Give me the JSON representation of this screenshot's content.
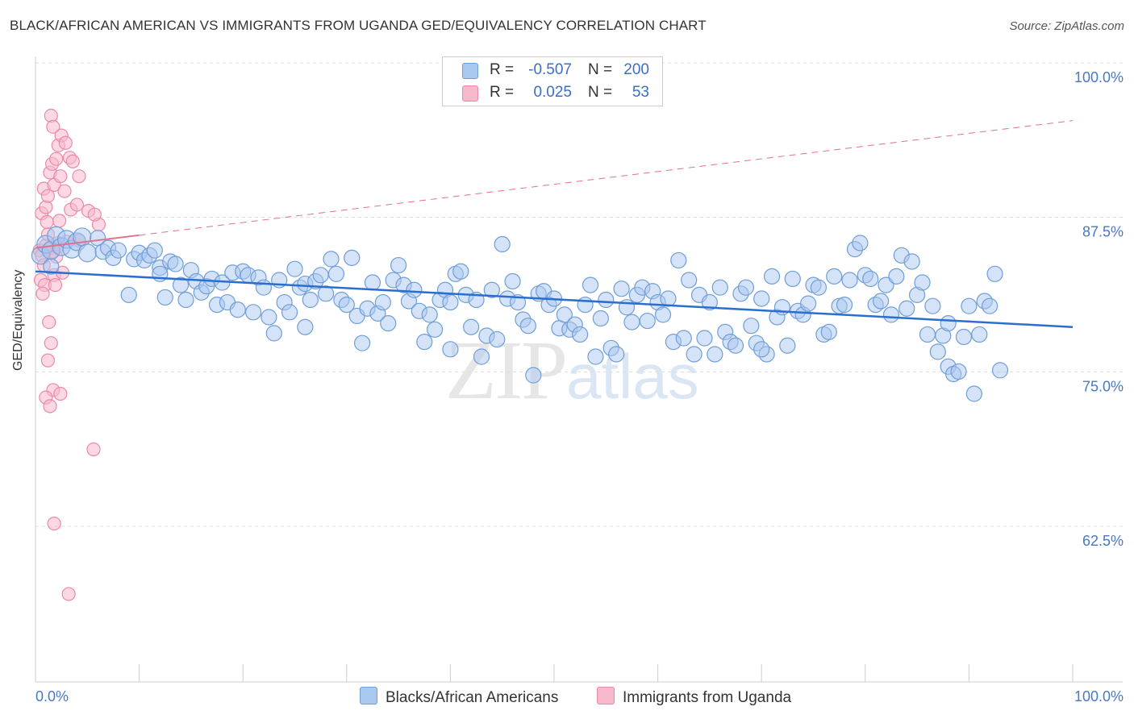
{
  "title": "BLACK/AFRICAN AMERICAN VS IMMIGRANTS FROM UGANDA GED/EQUIVALENCY CORRELATION CHART",
  "source": "Source: ZipAtlas.com",
  "watermark": {
    "zip": "ZIP",
    "atlas": "atlas"
  },
  "legend": {
    "rows": [
      {
        "r_label": "R =",
        "r_value": "-0.507",
        "n_label": "N =",
        "n_value": "200"
      },
      {
        "r_label": "R =",
        "r_value": "0.025",
        "n_label": "N =",
        "n_value": "53"
      }
    ]
  },
  "colors": {
    "blue_fill": "#a9c8f0",
    "blue_stroke": "#6f9ed8",
    "blue_line": "#2a6fcf",
    "pink_fill": "#f7b8cc",
    "pink_stroke": "#ea8aa8",
    "pink_line": "#e4708f",
    "grid": "#dddddd",
    "axis_text": "#4a78c4"
  },
  "chart_data": {
    "type": "scatter",
    "title": "BLACK/AFRICAN AMERICAN VS IMMIGRANTS FROM UGANDA GED/EQUIVALENCY CORRELATION CHART",
    "xlabel": "",
    "ylabel": "GED/Equivalency",
    "xlim": [
      0,
      100
    ],
    "ylim": [
      50,
      102
    ],
    "x_tick_labels": [
      "0.0%",
      "100.0%"
    ],
    "y_ticks": [
      62.5,
      75.0,
      87.5,
      100.0
    ],
    "y_tick_labels": [
      "62.5%",
      "75.0%",
      "87.5%",
      "100.0%"
    ],
    "grid": true,
    "legend_placement": "top-center",
    "series": [
      {
        "name": "Blacks/African Americans",
        "color": "#a9c8f0",
        "trend": {
          "x": [
            0,
            100
          ],
          "y": [
            84.3,
            79.8
          ]
        },
        "points": [
          [
            0.5,
            85.6
          ],
          [
            1.0,
            86.5
          ],
          [
            1.5,
            86.0
          ],
          [
            2.0,
            87.2
          ],
          [
            2.5,
            86.3
          ],
          [
            3.0,
            86.9
          ],
          [
            3.5,
            86.1
          ],
          [
            4.0,
            86.7
          ],
          [
            4.5,
            87.1
          ],
          [
            5.0,
            85.8
          ],
          [
            6.0,
            87.0
          ],
          [
            6.5,
            85.9
          ],
          [
            7.0,
            86.2
          ],
          [
            7.5,
            85.4
          ],
          [
            8.0,
            86.0
          ],
          [
            9.0,
            82.4
          ],
          [
            9.5,
            85.3
          ],
          [
            10.0,
            85.8
          ],
          [
            10.5,
            85.2
          ],
          [
            11.0,
            85.6
          ],
          [
            11.5,
            86.0
          ],
          [
            12.0,
            84.6
          ],
          [
            12.5,
            82.2
          ],
          [
            13.0,
            85.1
          ],
          [
            13.5,
            84.9
          ],
          [
            14.0,
            83.2
          ],
          [
            14.5,
            82.0
          ],
          [
            15.0,
            84.4
          ],
          [
            15.5,
            83.5
          ],
          [
            16.0,
            82.6
          ],
          [
            16.5,
            83.1
          ],
          [
            17.0,
            83.7
          ],
          [
            17.5,
            81.6
          ],
          [
            18.0,
            83.4
          ],
          [
            18.5,
            81.8
          ],
          [
            19.0,
            84.2
          ],
          [
            19.5,
            81.2
          ],
          [
            20.0,
            84.3
          ],
          [
            20.5,
            84.0
          ],
          [
            21.0,
            81.0
          ],
          [
            21.5,
            83.8
          ],
          [
            22.0,
            83.0
          ],
          [
            22.5,
            80.6
          ],
          [
            23.0,
            79.3
          ],
          [
            23.5,
            83.6
          ],
          [
            24.0,
            81.8
          ],
          [
            24.5,
            81.0
          ],
          [
            25.0,
            84.5
          ],
          [
            25.5,
            83.0
          ],
          [
            26.0,
            83.3
          ],
          [
            26.5,
            82.0
          ],
          [
            27.0,
            83.5
          ],
          [
            27.5,
            84.0
          ],
          [
            28.0,
            82.5
          ],
          [
            28.5,
            85.3
          ],
          [
            29.0,
            84.1
          ],
          [
            29.5,
            82.0
          ],
          [
            30.0,
            81.6
          ],
          [
            30.5,
            85.4
          ],
          [
            31.0,
            80.7
          ],
          [
            31.5,
            78.5
          ],
          [
            32.0,
            81.3
          ],
          [
            32.5,
            83.4
          ],
          [
            33.0,
            80.9
          ],
          [
            33.5,
            81.8
          ],
          [
            34.0,
            80.1
          ],
          [
            34.5,
            83.6
          ],
          [
            35.0,
            84.8
          ],
          [
            35.5,
            83.2
          ],
          [
            36.0,
            81.9
          ],
          [
            36.5,
            82.8
          ],
          [
            37.0,
            81.1
          ],
          [
            37.5,
            78.6
          ],
          [
            38.0,
            80.8
          ],
          [
            38.5,
            79.6
          ],
          [
            39.0,
            82.0
          ],
          [
            39.5,
            82.8
          ],
          [
            40.0,
            81.8
          ],
          [
            40.5,
            84.1
          ],
          [
            41.0,
            84.3
          ],
          [
            41.5,
            82.4
          ],
          [
            42.0,
            79.8
          ],
          [
            42.5,
            82.0
          ],
          [
            43.0,
            77.4
          ],
          [
            43.5,
            79.1
          ],
          [
            44.0,
            82.8
          ],
          [
            44.5,
            78.8
          ],
          [
            45.0,
            86.5
          ],
          [
            45.5,
            82.1
          ],
          [
            46.0,
            83.5
          ],
          [
            46.5,
            81.8
          ],
          [
            47.0,
            80.4
          ],
          [
            47.5,
            79.9
          ],
          [
            48.0,
            75.9
          ],
          [
            48.5,
            82.5
          ],
          [
            49.0,
            82.7
          ],
          [
            49.5,
            81.6
          ],
          [
            50.0,
            82.1
          ],
          [
            50.5,
            79.7
          ],
          [
            51.0,
            80.8
          ],
          [
            51.5,
            79.6
          ],
          [
            52.0,
            80.0
          ],
          [
            52.5,
            79.2
          ],
          [
            53.0,
            81.6
          ],
          [
            53.5,
            83.2
          ],
          [
            54.0,
            77.4
          ],
          [
            54.5,
            80.5
          ],
          [
            55.0,
            82.0
          ],
          [
            55.5,
            78.1
          ],
          [
            56.0,
            77.6
          ],
          [
            56.5,
            82.9
          ],
          [
            57.0,
            81.4
          ],
          [
            57.5,
            80.2
          ],
          [
            58.0,
            82.4
          ],
          [
            58.5,
            83.0
          ],
          [
            59.0,
            80.3
          ],
          [
            59.5,
            82.7
          ],
          [
            60.0,
            81.8
          ],
          [
            60.5,
            80.8
          ],
          [
            61.0,
            82.1
          ],
          [
            61.5,
            78.6
          ],
          [
            62.0,
            85.2
          ],
          [
            62.5,
            78.9
          ],
          [
            63.0,
            83.6
          ],
          [
            63.5,
            77.6
          ],
          [
            64.0,
            82.4
          ],
          [
            64.5,
            78.9
          ],
          [
            65.0,
            81.8
          ],
          [
            65.5,
            77.6
          ],
          [
            66.0,
            83.0
          ],
          [
            66.5,
            79.4
          ],
          [
            67.0,
            78.6
          ],
          [
            67.5,
            78.3
          ],
          [
            68.0,
            82.5
          ],
          [
            68.5,
            83.0
          ],
          [
            69.0,
            79.9
          ],
          [
            69.5,
            78.5
          ],
          [
            70.0,
            82.1
          ],
          [
            70.5,
            77.6
          ],
          [
            71.0,
            83.9
          ],
          [
            71.5,
            80.6
          ],
          [
            72.0,
            81.4
          ],
          [
            72.5,
            78.3
          ],
          [
            73.0,
            83.7
          ],
          [
            73.5,
            81.1
          ],
          [
            74.0,
            80.8
          ],
          [
            74.5,
            81.7
          ],
          [
            75.0,
            83.2
          ],
          [
            75.5,
            83.0
          ],
          [
            76.0,
            79.2
          ],
          [
            76.5,
            79.4
          ],
          [
            77.0,
            83.9
          ],
          [
            77.5,
            81.5
          ],
          [
            78.0,
            81.6
          ],
          [
            78.5,
            83.6
          ],
          [
            79.0,
            86.1
          ],
          [
            79.5,
            86.6
          ],
          [
            80.0,
            84.0
          ],
          [
            80.5,
            83.7
          ],
          [
            81.0,
            81.6
          ],
          [
            81.5,
            81.9
          ],
          [
            82.0,
            83.2
          ],
          [
            82.5,
            80.8
          ],
          [
            83.0,
            83.9
          ],
          [
            83.5,
            85.6
          ],
          [
            84.0,
            81.3
          ],
          [
            84.5,
            85.1
          ],
          [
            85.0,
            82.4
          ],
          [
            85.5,
            83.4
          ],
          [
            86.0,
            79.2
          ],
          [
            86.5,
            81.5
          ],
          [
            87.0,
            77.8
          ],
          [
            87.5,
            79.1
          ],
          [
            88.0,
            76.6
          ],
          [
            88.5,
            76.0
          ],
          [
            89.0,
            76.2
          ],
          [
            89.5,
            79.0
          ],
          [
            90.0,
            81.5
          ],
          [
            90.5,
            74.4
          ],
          [
            91.0,
            79.2
          ],
          [
            91.5,
            81.9
          ],
          [
            92.0,
            81.5
          ],
          [
            92.5,
            84.1
          ],
          [
            93.0,
            76.3
          ],
          [
            12.0,
            84.1
          ],
          [
            26.0,
            79.8
          ],
          [
            40.0,
            78.0
          ],
          [
            70.0,
            78.0
          ],
          [
            88.0,
            80.1
          ],
          [
            1.5,
            84.7
          ]
        ]
      },
      {
        "name": "Immigrants from Uganda",
        "color": "#f7b8cc",
        "trend": {
          "x": [
            0,
            100
          ],
          "y": [
            86.2,
            96.5
          ]
        },
        "points": [
          [
            0.4,
            86.0
          ],
          [
            0.6,
            85.6
          ],
          [
            0.8,
            84.8
          ],
          [
            1.0,
            86.4
          ],
          [
            1.2,
            87.3
          ],
          [
            1.4,
            86.2
          ],
          [
            1.6,
            85.9
          ],
          [
            1.8,
            84.0
          ],
          [
            2.0,
            85.5
          ],
          [
            2.2,
            86.6
          ],
          [
            0.6,
            89.0
          ],
          [
            0.8,
            91.0
          ],
          [
            1.0,
            89.5
          ],
          [
            1.2,
            90.4
          ],
          [
            1.4,
            92.3
          ],
          [
            1.6,
            93.0
          ],
          [
            1.8,
            91.3
          ],
          [
            2.0,
            93.4
          ],
          [
            2.2,
            94.5
          ],
          [
            2.4,
            92.0
          ],
          [
            1.5,
            96.9
          ],
          [
            1.7,
            96.0
          ],
          [
            2.5,
            95.3
          ],
          [
            2.9,
            94.7
          ],
          [
            3.3,
            93.5
          ],
          [
            3.6,
            93.2
          ],
          [
            4.2,
            92.0
          ],
          [
            5.1,
            89.2
          ],
          [
            6.1,
            88.1
          ],
          [
            2.8,
            90.8
          ],
          [
            3.4,
            89.3
          ],
          [
            4.0,
            89.7
          ],
          [
            5.7,
            88.9
          ],
          [
            2.3,
            88.4
          ],
          [
            1.1,
            88.3
          ],
          [
            2.1,
            86.3
          ],
          [
            3.0,
            86.7
          ],
          [
            4.2,
            86.8
          ],
          [
            0.5,
            83.6
          ],
          [
            0.9,
            83.2
          ],
          [
            0.7,
            82.5
          ],
          [
            2.6,
            84.2
          ],
          [
            1.9,
            83.2
          ],
          [
            1.3,
            80.2
          ],
          [
            1.5,
            78.5
          ],
          [
            1.2,
            77.1
          ],
          [
            1.7,
            74.7
          ],
          [
            2.4,
            74.4
          ],
          [
            1.0,
            74.1
          ],
          [
            1.4,
            73.4
          ],
          [
            5.6,
            69.9
          ],
          [
            1.8,
            63.9
          ],
          [
            3.2,
            58.2
          ]
        ]
      }
    ]
  },
  "bottom_legend": [
    "Blacks/African Americans",
    "Immigrants from Uganda"
  ]
}
